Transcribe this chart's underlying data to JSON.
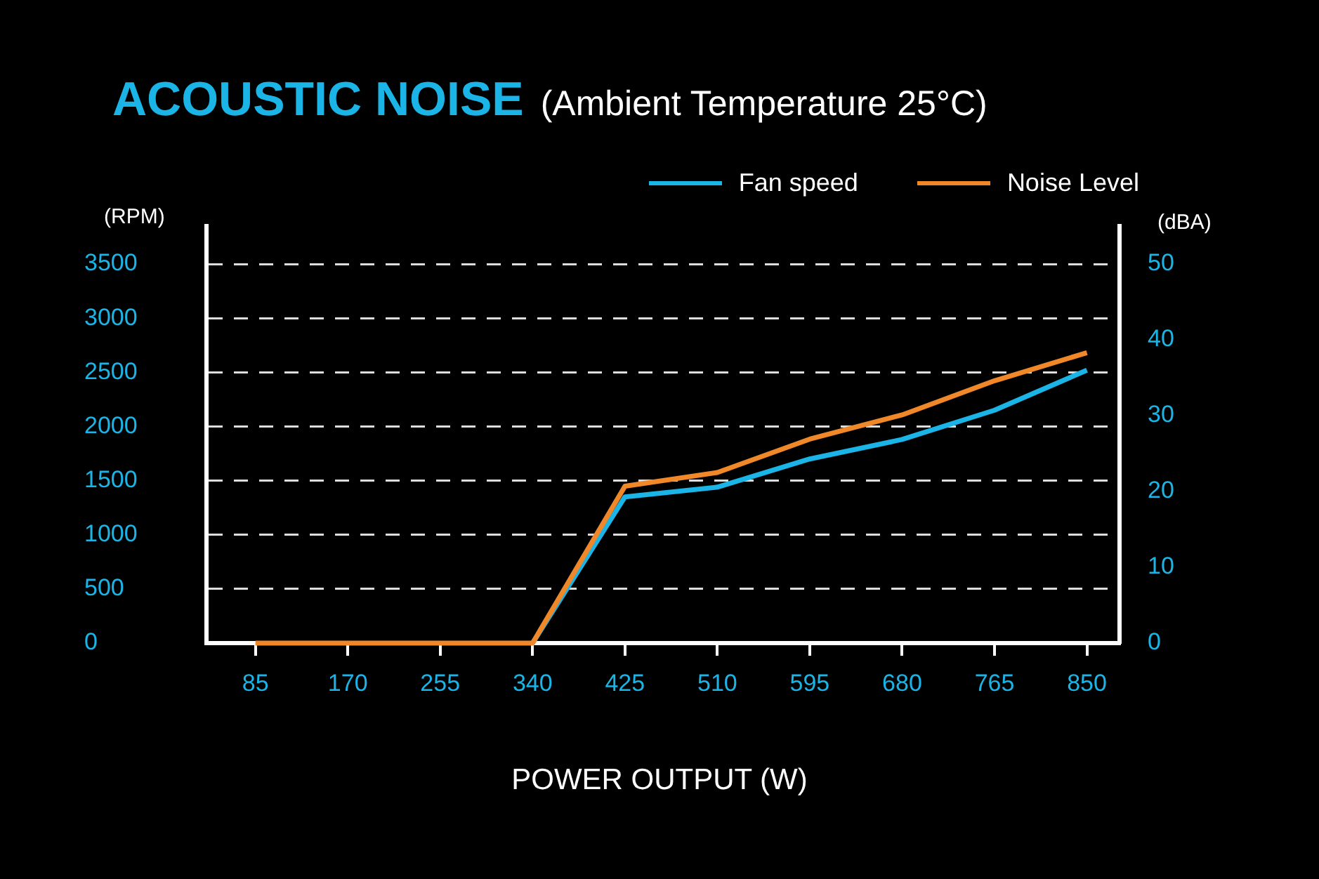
{
  "chart_data": {
    "type": "line",
    "title": "ACOUSTIC NOISE",
    "subtitle": "(Ambient Temperature 25°C)",
    "xlabel": "POWER OUTPUT (W)",
    "ylabel": "(RPM)",
    "y2label": "(dBA)",
    "x": [
      85,
      170,
      255,
      340,
      425,
      510,
      595,
      680,
      765,
      850
    ],
    "series": [
      {
        "name": "Fan speed",
        "color": "#1ab4e6",
        "values": [
          null,
          null,
          null,
          0,
          1350,
          1440,
          1700,
          1880,
          2150,
          2520
        ]
      },
      {
        "name": "Noise Level",
        "color": "#f0882a",
        "axis": "y2",
        "values": [
          0,
          0,
          0,
          0,
          20.7,
          22.5,
          26.9,
          30.1,
          34.6,
          38.3
        ]
      }
    ],
    "xlim": [
      40,
      880
    ],
    "xticks": [
      85,
      170,
      255,
      340,
      425,
      510,
      595,
      680,
      765,
      850
    ],
    "ylim": [
      0,
      3850
    ],
    "yticks": [
      0,
      500,
      1000,
      1500,
      2000,
      2500,
      3000,
      3500
    ],
    "y2lim": [
      0,
      55
    ],
    "y2ticks": [
      0,
      10,
      20,
      30,
      40,
      50
    ],
    "grid": "y",
    "legend": "top right",
    "marker": "none",
    "line_style": "solid"
  }
}
